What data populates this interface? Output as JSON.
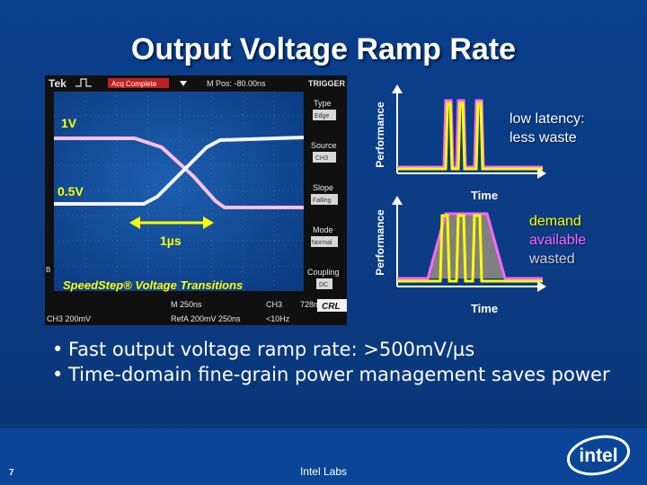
{
  "slide": {
    "title": "Output Voltage Ramp Rate",
    "page_number": "7",
    "footer": "Intel Labs",
    "logo_text": "intel"
  },
  "scope": {
    "brand": "Tek",
    "status": "Acq Complete",
    "mpos": "M Pos: -80.00ns",
    "trigger_title": "TRIGGER",
    "menu": [
      {
        "label": "Type",
        "value": "Edge"
      },
      {
        "label": "Source",
        "value": "CH3"
      },
      {
        "label": "Slope",
        "value": "Falling"
      },
      {
        "label": "Mode",
        "value": "Normal"
      },
      {
        "label": "Coupling",
        "value": "DC"
      }
    ],
    "label_1v": "1V",
    "label_05v": "0.5V",
    "label_1us": "1µs",
    "caption": "SpeedStep® Voltage Transitions",
    "bottom_ch3": "CH3  200mV",
    "bottom_m": "M 250ns",
    "bottom_ref": "RefA 200mV 250ns",
    "bottom_ch3b": "CH3",
    "bottom_mv": "728mV",
    "bottom_hz": "<10Hz",
    "crl": "CRL",
    "marker_b": "B"
  },
  "chart_top": {
    "ylabel": "Performance",
    "xlabel": "Time",
    "legend": [
      "low latency:",
      "less waste"
    ]
  },
  "chart_bottom": {
    "ylabel": "Performance",
    "xlabel": "Time",
    "legend": [
      "demand",
      "available",
      "wasted"
    ]
  },
  "colors": {
    "demand": "#ffff00",
    "available": "#ff66ff",
    "wasted": "#808080",
    "trace": "#f2f2f2"
  },
  "bullets": [
    "Fast output voltage ramp rate: >500mV/µs",
    "Time-domain fine-grain power management saves power"
  ]
}
